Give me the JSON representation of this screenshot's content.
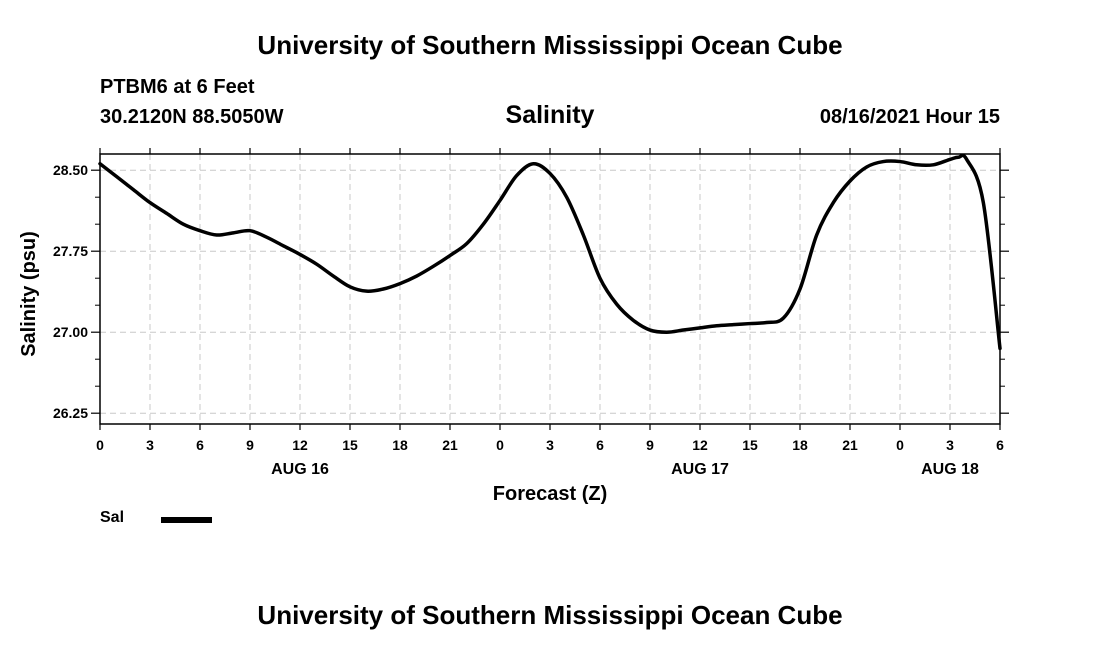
{
  "page": {
    "top_title": "University of Southern Mississippi Ocean Cube",
    "bottom_title": "University of Southern Mississippi Ocean Cube",
    "station": "PTBM6 at 6 Feet",
    "coords": "30.2120N  88.5050W",
    "timestamp": "08/16/2021 Hour 15"
  },
  "chart_data": {
    "type": "line",
    "title": "Salinity",
    "xlabel": "Forecast (Z)",
    "ylabel": "Salinity (psu)",
    "xlim": [
      0,
      54
    ],
    "ylim": [
      26.15,
      28.65
    ],
    "grid": true,
    "x_ticks": [
      0,
      3,
      6,
      9,
      12,
      15,
      18,
      21,
      24,
      27,
      30,
      33,
      36,
      39,
      42,
      45,
      48,
      51,
      54
    ],
    "x_tick_labels": [
      "0",
      "3",
      "6",
      "9",
      "12",
      "15",
      "18",
      "21",
      "0",
      "3",
      "6",
      "9",
      "12",
      "15",
      "18",
      "21",
      "0",
      "3",
      "6"
    ],
    "y_ticks": [
      26.25,
      27.0,
      27.75,
      28.5
    ],
    "y_tick_labels": [
      "26.25",
      "27.00",
      "27.75",
      "28.50"
    ],
    "date_labels": [
      {
        "x": 12,
        "text": "AUG 16"
      },
      {
        "x": 36,
        "text": "AUG 17"
      },
      {
        "x": 51,
        "text": "AUG 18"
      }
    ],
    "series": [
      {
        "name": "Sal",
        "color": "#000000",
        "x": [
          0,
          1,
          2,
          3,
          4,
          5,
          6,
          7,
          8,
          9,
          10,
          11,
          12,
          13,
          14,
          15,
          16,
          17,
          18,
          19,
          20,
          21,
          22,
          23,
          24,
          25,
          26,
          27,
          28,
          29,
          30,
          31,
          32,
          33,
          34,
          35,
          36,
          37,
          38,
          39,
          40,
          41,
          42,
          43,
          44,
          45,
          46,
          47,
          48,
          49,
          50,
          51,
          51.5,
          52,
          53,
          54
        ],
        "values": [
          28.56,
          28.44,
          28.32,
          28.2,
          28.1,
          28.0,
          27.94,
          27.9,
          27.92,
          27.94,
          27.88,
          27.8,
          27.72,
          27.63,
          27.52,
          27.42,
          27.38,
          27.4,
          27.45,
          27.52,
          27.61,
          27.71,
          27.82,
          28.0,
          28.22,
          28.45,
          28.56,
          28.47,
          28.25,
          27.9,
          27.5,
          27.26,
          27.11,
          27.02,
          27.0,
          27.02,
          27.04,
          27.06,
          27.07,
          27.08,
          27.09,
          27.13,
          27.4,
          27.9,
          28.2,
          28.4,
          28.53,
          28.58,
          28.58,
          28.55,
          28.55,
          28.6,
          28.62,
          28.6,
          28.2,
          26.85
        ]
      }
    ],
    "legend": {
      "label": "Sal",
      "position": "bottom-left"
    }
  }
}
